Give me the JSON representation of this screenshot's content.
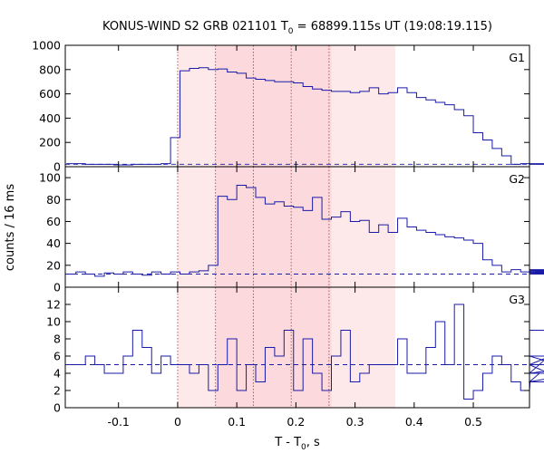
{
  "chart_data": {
    "type": "line",
    "title_parts": {
      "pre": "KONUS-WIND S2 GRB 021101  T",
      "sub": "0",
      "post": " = 68899.115s UT (19:08:19.115)"
    },
    "xlabel_parts": {
      "pre": "T - T",
      "sub": "0",
      "post": ", s"
    },
    "ylabel": "counts / 16 ms",
    "xlim": [
      -0.19,
      0.595
    ],
    "xticks": [
      -0.1,
      0,
      0.1,
      0.2,
      0.3,
      0.4,
      0.5
    ],
    "xtick_labels": [
      "-0.1",
      "0",
      "0.1",
      "0.2",
      "0.3",
      "0.4",
      "0.5"
    ],
    "bin_width": 0.016,
    "x_start": -0.188,
    "shaded_intervals": [
      {
        "start": 0.0,
        "end": 0.368,
        "level": "light"
      },
      {
        "start": 0.064,
        "end": 0.26,
        "level": "medium"
      }
    ],
    "vlines": [
      0.0,
      0.064,
      0.128,
      0.192,
      0.256
    ],
    "panels": [
      {
        "name": "G1",
        "ylim": [
          0,
          1000
        ],
        "yticks": [
          0,
          200,
          400,
          600,
          800,
          1000
        ],
        "background": 20,
        "values": [
          25,
          25,
          20,
          20,
          20,
          15,
          15,
          20,
          20,
          20,
          25,
          240,
          790,
          810,
          815,
          800,
          805,
          780,
          770,
          730,
          720,
          710,
          700,
          700,
          690,
          660,
          640,
          630,
          620,
          620,
          610,
          620,
          650,
          600,
          610,
          650,
          610,
          570,
          550,
          530,
          510,
          470,
          420,
          280,
          220,
          150,
          90,
          20,
          25,
          20,
          20,
          20,
          25,
          20,
          25,
          20,
          20,
          20,
          25
        ]
      },
      {
        "name": "G2",
        "ylim": [
          0,
          110
        ],
        "yticks": [
          0,
          20,
          40,
          60,
          80,
          100
        ],
        "background": 12,
        "values": [
          12,
          14,
          12,
          10,
          13,
          12,
          14,
          12,
          11,
          14,
          12,
          14,
          12,
          14,
          15,
          20,
          83,
          80,
          93,
          91,
          82,
          76,
          78,
          74,
          73,
          70,
          82,
          62,
          64,
          69,
          60,
          61,
          50,
          57,
          50,
          63,
          55,
          52,
          50,
          48,
          46,
          45,
          43,
          40,
          25,
          20,
          14,
          16,
          14,
          15,
          16,
          14,
          12,
          16,
          14,
          15,
          13,
          12,
          14
        ]
      },
      {
        "name": "G3",
        "ylim": [
          0,
          14
        ],
        "yticks": [
          0,
          2,
          4,
          6,
          8,
          10,
          12
        ],
        "background": 5,
        "values": [
          5,
          5,
          6,
          5,
          4,
          4,
          6,
          9,
          7,
          4,
          6,
          5,
          5,
          4,
          5,
          2,
          5,
          8,
          2,
          5,
          3,
          7,
          6,
          9,
          2,
          8,
          4,
          2,
          6,
          9,
          3,
          4,
          5,
          5,
          5,
          8,
          4,
          4,
          7,
          10,
          5,
          12,
          1,
          2,
          4,
          6,
          5,
          3,
          2,
          3,
          4,
          6,
          5,
          3,
          4,
          4,
          5,
          5,
          9
        ]
      }
    ]
  }
}
